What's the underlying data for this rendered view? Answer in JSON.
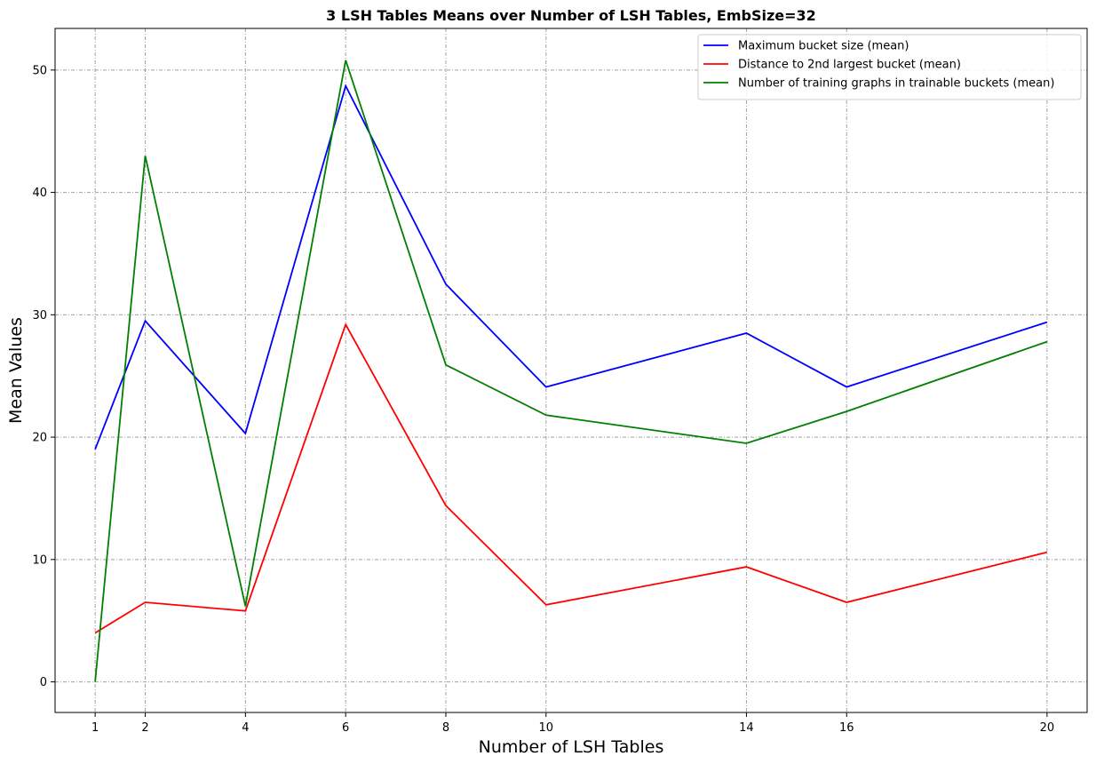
{
  "chart_data": {
    "type": "line",
    "title": "3 LSH Tables Means over Number of LSH Tables, EmbSize=32",
    "xlabel": "Number of LSH Tables",
    "ylabel": "Mean Values",
    "x": [
      1,
      2,
      4,
      6,
      8,
      10,
      14,
      16,
      20
    ],
    "xticks": [
      1,
      2,
      4,
      6,
      8,
      10,
      14,
      16,
      20
    ],
    "yticks": [
      0,
      10,
      20,
      30,
      40,
      50
    ],
    "xlim": [
      0.2,
      20.8
    ],
    "ylim": [
      -2.5,
      53.4
    ],
    "grid": true,
    "legend_position": "top-right",
    "series": [
      {
        "name": "Maximum bucket size (mean)",
        "color": "#0000ff",
        "values": [
          19.0,
          29.5,
          20.3,
          48.7,
          32.5,
          24.1,
          28.5,
          24.1,
          29.4
        ]
      },
      {
        "name": "Distance to 2nd largest bucket (mean)",
        "color": "#ff0000",
        "values": [
          4.0,
          6.5,
          5.8,
          29.2,
          14.4,
          6.3,
          9.4,
          6.5,
          10.6
        ]
      },
      {
        "name": "Number of training graphs in trainable buckets (mean)",
        "color": "#008000",
        "values": [
          0.0,
          43.0,
          6.2,
          50.8,
          25.9,
          21.8,
          19.5,
          22.1,
          27.8
        ]
      }
    ]
  }
}
